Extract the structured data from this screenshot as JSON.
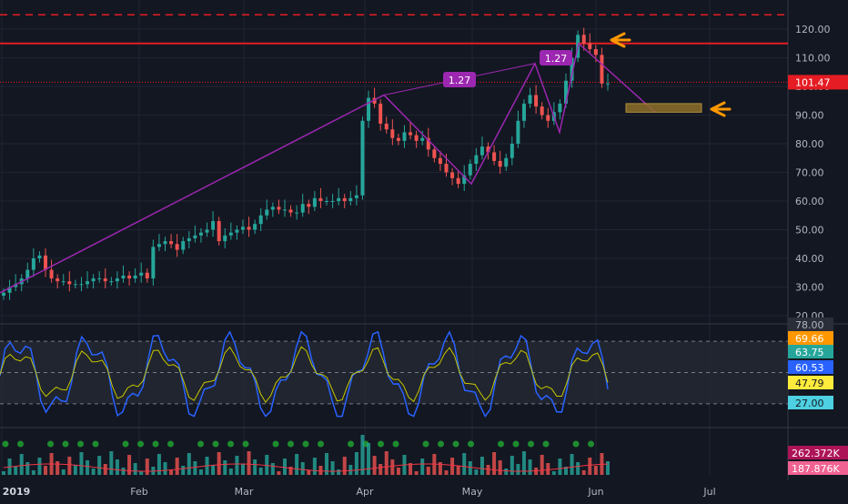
{
  "colors": {
    "background": "#131722",
    "up": "#26a69a",
    "down": "#ef5350",
    "pattern": "#9c27b0",
    "label_bg": "#9c27b0",
    "resistance": "#e51c23",
    "arrow": "#ff9800",
    "target_zone": "#8d6e2a",
    "rsi_line": "#2962ff",
    "rsi_signal": "#c6c600",
    "vol_ma": "#f23645",
    "dots_green": "#1e8c2e"
  },
  "price_axis": {
    "ticks": [
      "120.00",
      "110.00",
      "100.00",
      "90.00",
      "80.00",
      "70.00",
      "60.00",
      "50.00",
      "40.00",
      "30.00",
      "20.00"
    ],
    "current_price": "101.47",
    "range": [
      17,
      125
    ]
  },
  "time_axis": {
    "labels": [
      "2019",
      "Feb",
      "Mar",
      "Apr",
      "May",
      "Jun",
      "Jul"
    ]
  },
  "chart_data": {
    "type": "candlestick",
    "series_close": [
      28,
      30,
      31,
      33,
      36,
      40,
      41,
      36,
      33,
      32,
      32,
      31,
      31,
      31,
      32,
      33,
      33,
      32,
      32,
      33,
      34,
      33,
      34,
      35,
      33,
      44,
      45,
      46,
      45,
      43,
      46,
      47,
      48,
      49,
      50,
      53,
      46,
      48,
      49,
      50,
      51,
      50,
      52,
      55,
      57,
      58,
      57,
      57,
      56,
      56,
      59,
      58,
      61,
      60,
      60,
      60,
      61,
      60,
      61,
      62,
      88,
      96,
      94,
      87,
      85,
      82,
      81,
      84,
      83,
      81,
      82,
      78,
      75,
      73,
      70,
      68,
      66,
      69,
      73,
      76,
      79,
      77,
      74,
      72,
      75,
      80,
      88,
      94,
      97,
      93,
      90,
      88,
      91,
      94,
      102,
      110,
      118,
      115,
      113,
      111,
      101,
      101
    ],
    "resistance_levels": [
      125,
      115,
      101.47
    ],
    "target_zone": [
      91,
      94
    ],
    "pattern_labels": [
      "1.27",
      "1.27"
    ],
    "rsi": {
      "labels": [
        "78.00",
        "69.66",
        "63.75",
        "60.53",
        "47.79",
        "27.00"
      ],
      "bands": [
        70,
        30
      ]
    },
    "volume": {
      "labels": [
        "262.372K",
        "187.876K"
      ]
    }
  }
}
